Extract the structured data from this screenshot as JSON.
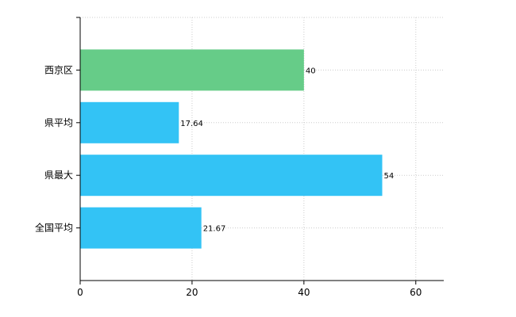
{
  "chart_data": {
    "type": "bar",
    "orientation": "horizontal",
    "categories": [
      "西京区",
      "県平均",
      "県最大",
      "全国平均"
    ],
    "values": [
      40,
      17.64,
      54,
      21.67
    ],
    "value_labels": [
      "40",
      "17.64",
      "54",
      "21.67"
    ],
    "bar_colors": [
      "#66cc88",
      "#33c3f5",
      "#33c3f5",
      "#33c3f5"
    ],
    "xlim": [
      0,
      65
    ],
    "xticks": [
      0,
      20,
      40,
      60
    ],
    "xtick_labels": [
      "0",
      "20",
      "40",
      "60"
    ],
    "grid": true,
    "title": "",
    "xlabel": "",
    "ylabel": ""
  }
}
